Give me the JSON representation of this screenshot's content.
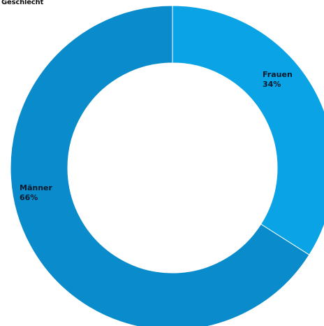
{
  "chart_data": {
    "type": "pie",
    "title": "Geschlecht",
    "categories": [
      "Frauen",
      "Männer"
    ],
    "values": [
      34,
      66
    ],
    "value_labels": [
      "34%",
      "66%"
    ],
    "colors": [
      "#0aa3e6",
      "#0a8ccc"
    ],
    "hole": "donut"
  }
}
